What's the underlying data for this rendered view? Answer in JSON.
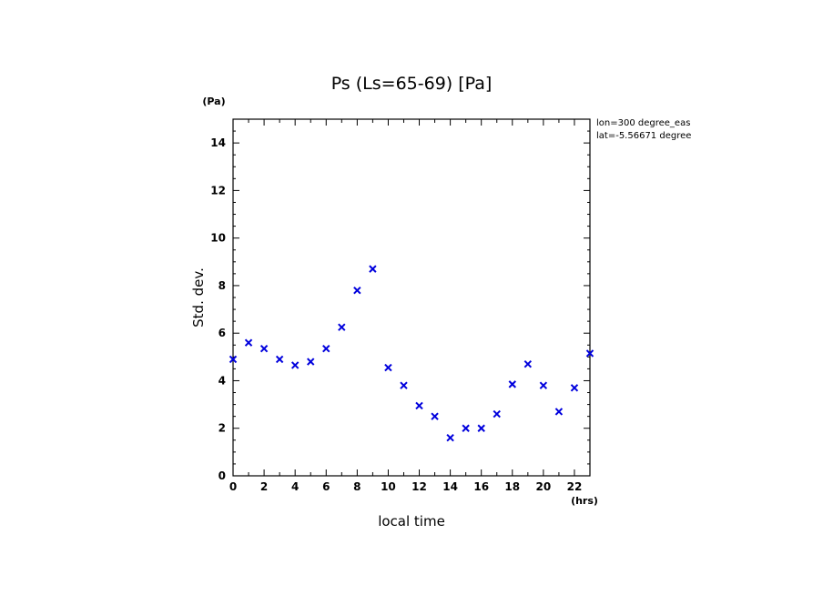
{
  "chart_data": {
    "type": "scatter",
    "title": "Ps (Ls=65-69) [Pa]",
    "xlabel": "local time",
    "ylabel": "Std. dev.",
    "x_unit": "(hrs)",
    "y_unit": "(Pa)",
    "xlim": [
      0,
      23
    ],
    "ylim": [
      0,
      15
    ],
    "x_ticks": [
      "0",
      "2",
      "4",
      "6",
      "8",
      "10",
      "12",
      "14",
      "16",
      "18",
      "20",
      "22"
    ],
    "y_ticks": [
      "0",
      "2",
      "4",
      "6",
      "8",
      "10",
      "12",
      "14"
    ],
    "annotations": [
      "lon=300 degree_eas",
      "lat=-5.56671 degree"
    ],
    "marker": "x",
    "marker_color": "#0000dd",
    "grid": false,
    "points": [
      {
        "x": 0,
        "y": 4.9
      },
      {
        "x": 1,
        "y": 5.6
      },
      {
        "x": 2,
        "y": 5.35
      },
      {
        "x": 3,
        "y": 4.9
      },
      {
        "x": 4,
        "y": 4.65
      },
      {
        "x": 5,
        "y": 4.8
      },
      {
        "x": 6,
        "y": 5.35
      },
      {
        "x": 7,
        "y": 6.25
      },
      {
        "x": 8,
        "y": 7.8
      },
      {
        "x": 9,
        "y": 8.7
      },
      {
        "x": 10,
        "y": 4.55
      },
      {
        "x": 11,
        "y": 3.8
      },
      {
        "x": 12,
        "y": 2.95
      },
      {
        "x": 13,
        "y": 2.5
      },
      {
        "x": 14,
        "y": 1.6
      },
      {
        "x": 15,
        "y": 2.0
      },
      {
        "x": 16,
        "y": 2.0
      },
      {
        "x": 17,
        "y": 2.6
      },
      {
        "x": 18,
        "y": 3.85
      },
      {
        "x": 19,
        "y": 4.7
      },
      {
        "x": 20,
        "y": 3.8
      },
      {
        "x": 21,
        "y": 2.7
      },
      {
        "x": 22,
        "y": 3.7
      },
      {
        "x": 23,
        "y": 5.15
      }
    ]
  }
}
